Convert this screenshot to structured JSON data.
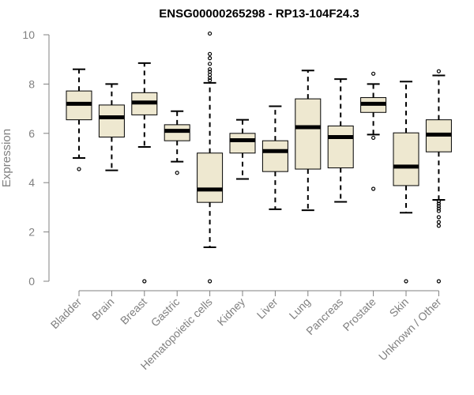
{
  "chart_data": {
    "type": "boxplot",
    "title": "ENSG00000265298 - RP13-104F24.3",
    "ylabel": "Expression",
    "xlabel": "",
    "ylim": [
      0,
      10
    ],
    "yticks": [
      0,
      2,
      4,
      6,
      8,
      10
    ],
    "box_fill": "#EEE8D0",
    "categories": [
      "Bladder",
      "Brain",
      "Breast",
      "Gastric",
      "Hematopoietic cells",
      "Kidney",
      "Liver",
      "Lung",
      "Pancreas",
      "Prostate",
      "Skin",
      "Unknown / Other"
    ],
    "boxes": [
      {
        "min": 5.0,
        "q1": 6.55,
        "median": 7.2,
        "q3": 7.72,
        "max": 8.6,
        "outliers": [
          4.55
        ]
      },
      {
        "min": 4.5,
        "q1": 5.85,
        "median": 6.65,
        "q3": 7.15,
        "max": 8.0,
        "outliers": []
      },
      {
        "min": 5.45,
        "q1": 6.75,
        "median": 7.25,
        "q3": 7.65,
        "max": 8.85,
        "outliers": [
          0.0
        ]
      },
      {
        "min": 4.85,
        "q1": 5.7,
        "median": 6.1,
        "q3": 6.35,
        "max": 6.9,
        "outliers": [
          4.4
        ]
      },
      {
        "min": 1.38,
        "q1": 3.2,
        "median": 3.72,
        "q3": 5.2,
        "max": 8.05,
        "outliers": [
          10.05,
          9.22,
          9.05,
          8.82,
          8.6,
          8.5,
          8.38,
          8.25,
          8.15,
          0.0
        ]
      },
      {
        "min": 4.15,
        "q1": 5.2,
        "median": 5.72,
        "q3": 6.0,
        "max": 6.55,
        "outliers": []
      },
      {
        "min": 2.92,
        "q1": 4.45,
        "median": 5.28,
        "q3": 5.7,
        "max": 7.1,
        "outliers": []
      },
      {
        "min": 2.88,
        "q1": 4.55,
        "median": 6.25,
        "q3": 7.4,
        "max": 8.55,
        "outliers": []
      },
      {
        "min": 3.22,
        "q1": 4.6,
        "median": 5.85,
        "q3": 6.3,
        "max": 8.2,
        "outliers": []
      },
      {
        "min": 5.95,
        "q1": 6.85,
        "median": 7.2,
        "q3": 7.45,
        "max": 8.0,
        "outliers": [
          8.42,
          5.82,
          3.75
        ]
      },
      {
        "min": 2.78,
        "q1": 3.88,
        "median": 4.65,
        "q3": 6.02,
        "max": 8.1,
        "outliers": [
          0.0
        ]
      },
      {
        "min": 3.3,
        "q1": 5.25,
        "median": 5.95,
        "q3": 6.55,
        "max": 8.35,
        "outliers": [
          8.52,
          3.25,
          3.15,
          3.05,
          2.95,
          2.85,
          2.6,
          2.4,
          2.25,
          0.0
        ]
      }
    ]
  }
}
